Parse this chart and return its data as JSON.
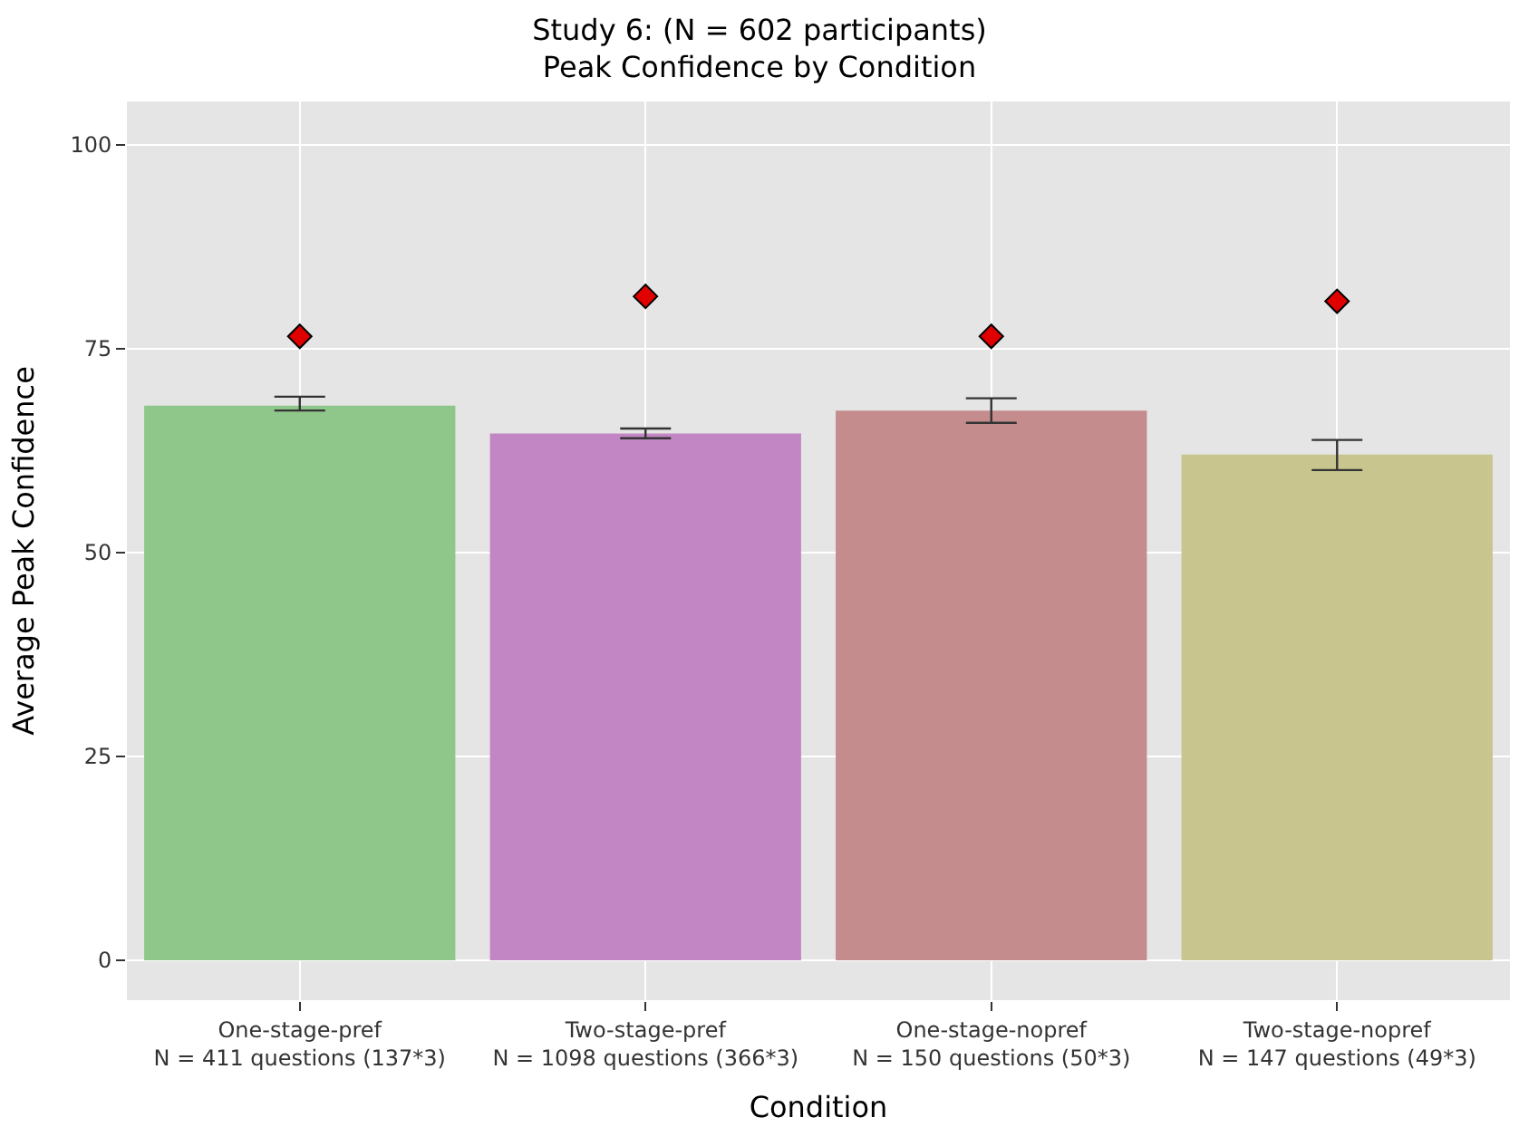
{
  "chart_data": {
    "type": "bar",
    "title": "Study 6: (N = 602 participants)\nPeak Confidence by Condition",
    "xlabel": "Condition",
    "ylabel": "Average Peak Confidence",
    "categories": [
      "One-stage-pref\nN = 411 questions (137*3)",
      "Two-stage-pref\nN = 1098 questions (366*3)",
      "One-stage-nopref\nN = 150 questions (50*3)",
      "Two-stage-nopref\nN = 147 questions (49*3)"
    ],
    "series": [
      {
        "colors": [
          "#8fc68a",
          "#c386c4",
          "#c48c8c",
          "#c8c68e"
        ],
        "values": [
          68.0,
          64.6,
          67.4,
          62.0
        ],
        "errors": [
          [
            67.4,
            69.1
          ],
          [
            64.0,
            65.2
          ],
          [
            65.9,
            68.9
          ],
          [
            60.1,
            63.8
          ]
        ]
      },
      {
        "type": "scatter",
        "marker": "diamond",
        "color": "#e00000",
        "x": [
          "One-stage-pref\nN = 411 questions (137*3)",
          "Two-stage-pref\nN = 1098 questions (366*3)",
          "One-stage-nopref\nN = 150 questions (50*3)",
          "Two-stage-nopref\nN = 147 questions (49*3)"
        ],
        "values": [
          76.5,
          81.4,
          76.5,
          80.8
        ]
      }
    ],
    "ylim": [
      -4.9,
      105.3
    ],
    "yticks": [
      0,
      25,
      50,
      75,
      100
    ],
    "grid": true
  }
}
